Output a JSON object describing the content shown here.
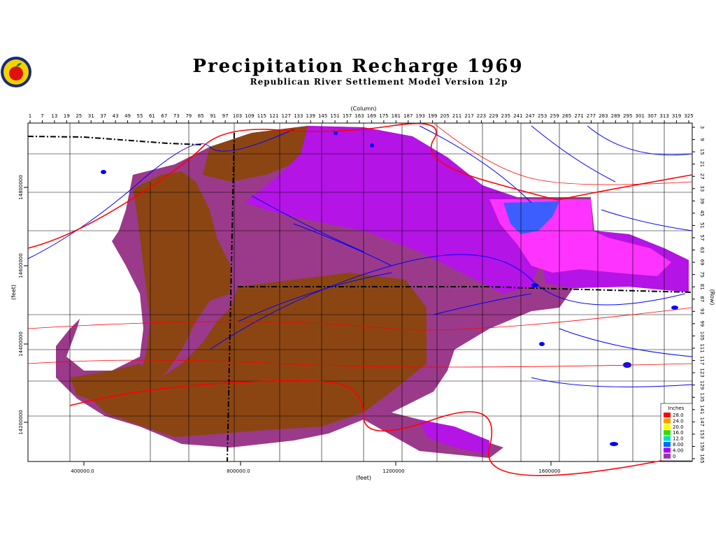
{
  "header": {
    "title": "Precipitation Recharge 1969",
    "subtitle": "Republican River Settlement Model Version 12p"
  },
  "axes": {
    "top_label": "(Column)",
    "right_label": "(Row)",
    "bottom_label": "(feet)",
    "left_label": "(feet)",
    "column_ticks": [
      "1",
      "7",
      "13",
      "19",
      "25",
      "31",
      "37",
      "43",
      "49",
      "55",
      "61",
      "67",
      "73",
      "79",
      "85",
      "91",
      "97",
      "103",
      "109",
      "115",
      "121",
      "127",
      "133",
      "139",
      "145",
      "151",
      "157",
      "163",
      "169",
      "175",
      "181",
      "187",
      "193",
      "199",
      "205",
      "211",
      "217",
      "223",
      "229",
      "235",
      "241",
      "247",
      "253",
      "259",
      "265",
      "271",
      "277",
      "283",
      "289",
      "295",
      "301",
      "307",
      "313",
      "319",
      "325"
    ],
    "row_ticks": [
      "3",
      "9",
      "15",
      "21",
      "27",
      "33",
      "39",
      "45",
      "51",
      "57",
      "63",
      "69",
      "75",
      "81",
      "87",
      "93",
      "99",
      "105",
      "111",
      "117",
      "123",
      "129",
      "135",
      "141",
      "147",
      "153",
      "159",
      "165"
    ],
    "x_ticks": [
      "400000.0",
      "800000.0",
      "1200000",
      "1600000"
    ],
    "y_ticks": [
      "14800000",
      "14600000",
      "14400000",
      "14200000"
    ]
  },
  "legend": {
    "title": "Inches",
    "entries": [
      {
        "label": "28.0",
        "color": "#ff0000"
      },
      {
        "label": "24.0",
        "color": "#ff9900"
      },
      {
        "label": "20.0",
        "color": "#ffff00"
      },
      {
        "label": "16.0",
        "color": "#33dd00"
      },
      {
        "label": "12.0",
        "color": "#00e0c0"
      },
      {
        "label": "8.00",
        "color": "#0066ff"
      },
      {
        "label": "4.00",
        "color": "#aa00ff"
      },
      {
        "label": "0",
        "color": "#9933aa"
      }
    ]
  },
  "colors": {
    "low_recharge": "#8b4513",
    "mid_recharge": "#9b3a8a",
    "high_recharge": "#b414e6",
    "peak_recharge": "#ff33ff",
    "max_recharge": "#1a66ff",
    "rivers": "#0000ff",
    "roads": "#ff0000"
  },
  "logo": {
    "icon": "apple-logo-icon"
  }
}
